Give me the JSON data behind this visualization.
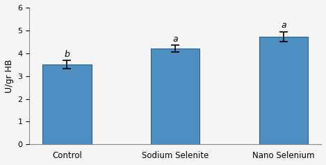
{
  "categories": [
    "Control",
    "Sodium Selenite",
    "Nano Selenium"
  ],
  "values": [
    3.5,
    4.2,
    4.72
  ],
  "errors": [
    0.18,
    0.15,
    0.22
  ],
  "sig_labels": [
    "b",
    "a",
    "a"
  ],
  "bar_color": "#4f8fc0",
  "bar_edge_color": "#2a5f8f",
  "ylabel": "U/gr HB",
  "ylim": [
    0,
    6
  ],
  "yticks": [
    0,
    1,
    2,
    3,
    4,
    5,
    6
  ],
  "figsize": [
    4.69,
    2.38
  ],
  "dpi": 100,
  "bar_width": 0.45,
  "background_color": "#f5f5f5"
}
